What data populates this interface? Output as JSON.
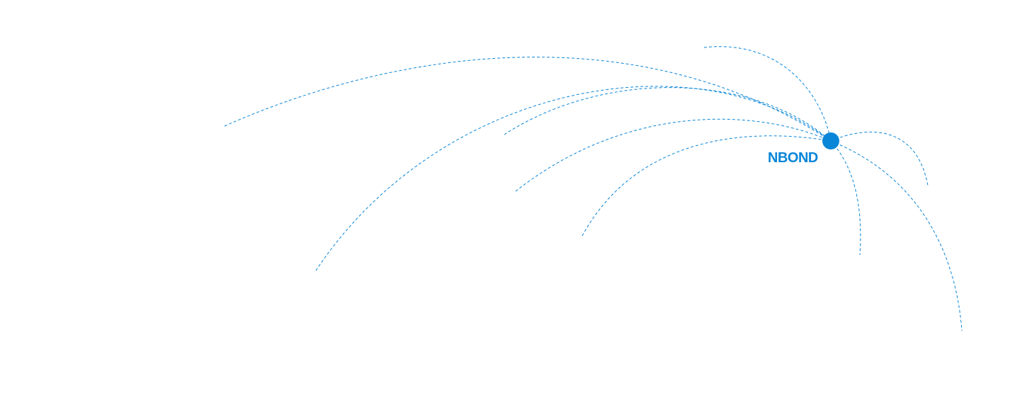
{
  "hub": {
    "label": "NBOND",
    "color": "#0a86d8"
  }
}
